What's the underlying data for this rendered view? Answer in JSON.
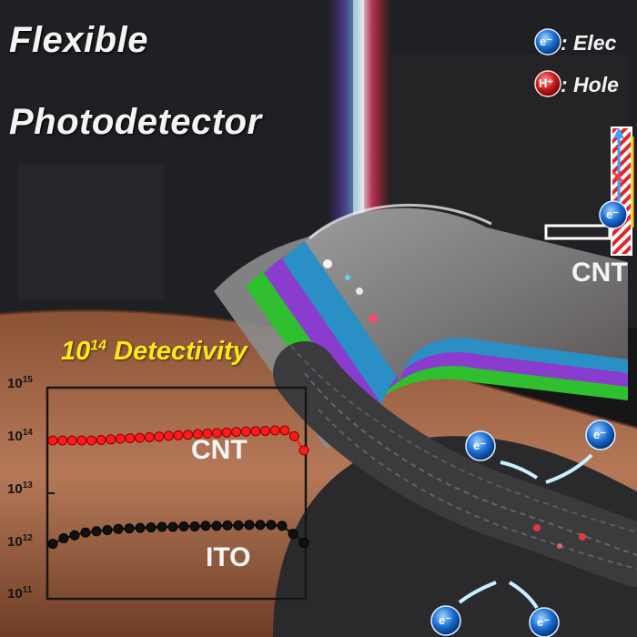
{
  "title": {
    "line1": "Flexible",
    "line2": "Photodetector"
  },
  "legend": {
    "electron_symbol": "e⁻",
    "electron_label": ": Elec",
    "hole_symbol": "H⁺",
    "hole_label": ": Hole"
  },
  "device_label": "CNT",
  "detectivity_chart": {
    "title_base": "10",
    "title_exp": "14",
    "title_rest": " Detectivity",
    "y_ticks": [
      {
        "base": "10",
        "exp": "15"
      },
      {
        "base": "10",
        "exp": "14"
      },
      {
        "base": "10",
        "exp": "13"
      },
      {
        "base": "10",
        "exp": "12"
      },
      {
        "base": "10",
        "exp": "11"
      }
    ],
    "series_labels": [
      "CNT",
      "ITO"
    ]
  },
  "electron_badge": "e⁻",
  "chart_data": {
    "type": "scatter",
    "title": "10^14 Detectivity",
    "yscale": "log",
    "ylim": [
      100000000000.0,
      1000000000000000.0
    ],
    "grid": false,
    "series": [
      {
        "name": "CNT",
        "color": "#ff1a1a",
        "values": [
          100000000000000.0,
          100000000000000.0,
          100000000000000.0,
          100000000000000.0,
          100000000000000.0,
          102000000000000.0,
          105000000000000.0,
          108000000000000.0,
          110000000000000.0,
          112000000000000.0,
          115000000000000.0,
          118000000000000.0,
          122000000000000.0,
          125000000000000.0,
          128000000000000.0,
          132000000000000.0,
          135000000000000.0,
          138000000000000.0,
          142000000000000.0,
          145000000000000.0,
          148000000000000.0,
          150000000000000.0,
          152000000000000.0,
          155000000000000.0,
          155000000000000.0,
          120000000000000.0,
          65000000000000.0
        ]
      },
      {
        "name": "ITO",
        "color": "#111111",
        "values": [
          1100000000000.0,
          1400000000000.0,
          1600000000000.0,
          1800000000000.0,
          1900000000000.0,
          2000000000000.0,
          2100000000000.0,
          2150000000000.0,
          2200000000000.0,
          2250000000000.0,
          2300000000000.0,
          2300000000000.0,
          2350000000000.0,
          2350000000000.0,
          2400000000000.0,
          2400000000000.0,
          2450000000000.0,
          2450000000000.0,
          2500000000000.0,
          2500000000000.0,
          2500000000000.0,
          2400000000000.0,
          1700000000000.0,
          1150000000000.0
        ]
      }
    ]
  }
}
